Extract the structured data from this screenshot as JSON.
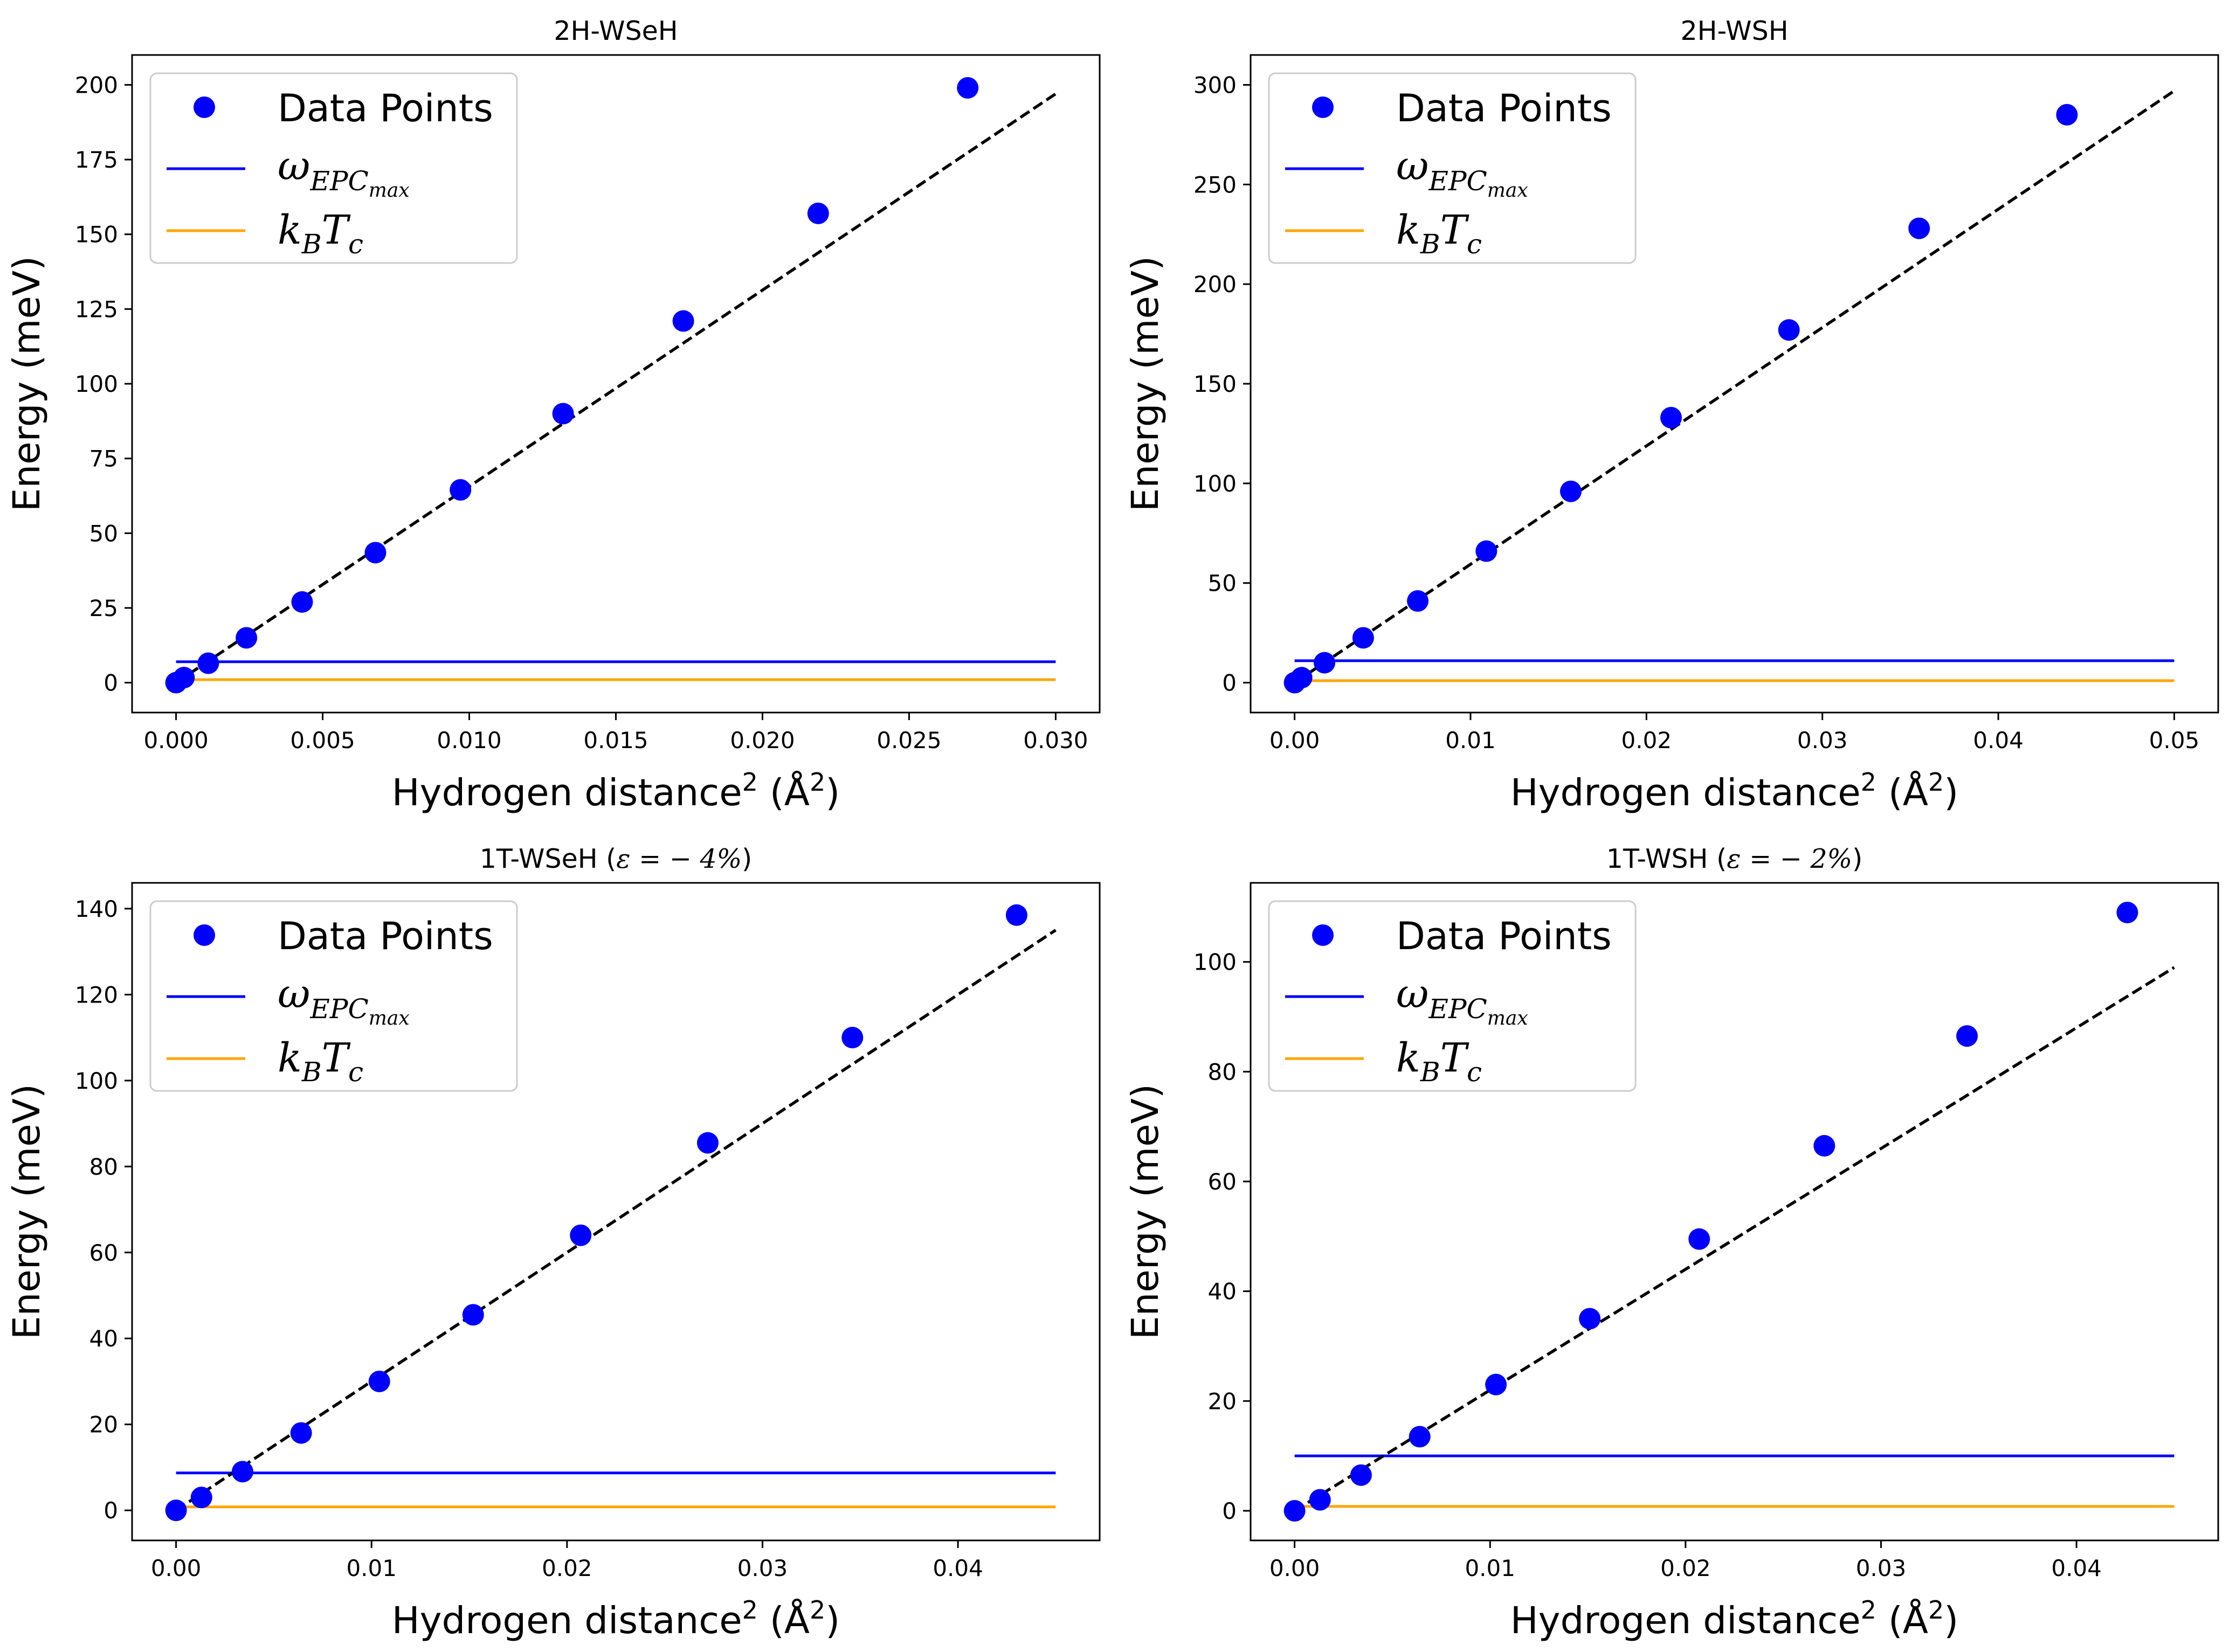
{
  "chart_data": [
    {
      "type": "scatter",
      "title": "2H-WSeH",
      "xlabel": "Hydrogen distance",
      "xlabel_sup": "2",
      "xlabel_unit": "(Å",
      "xlabel_unit_sup": "2",
      "xlabel_close": ")",
      "ylabel": "Energy (meV)",
      "xlim": [
        -0.0015,
        0.0315
      ],
      "ylim": [
        -10,
        210
      ],
      "xticks": [
        0.0,
        0.005,
        0.01,
        0.015,
        0.02,
        0.025,
        0.03
      ],
      "xtick_labels": [
        "0.000",
        "0.005",
        "0.010",
        "0.015",
        "0.020",
        "0.025",
        "0.030"
      ],
      "yticks": [
        0,
        25,
        50,
        75,
        100,
        125,
        150,
        175,
        200
      ],
      "ytick_labels": [
        "0",
        "25",
        "50",
        "75",
        "100",
        "125",
        "150",
        "175",
        "200"
      ],
      "series": [
        {
          "name": "Data Points",
          "kind": "scatter",
          "color": "#0000ff",
          "x": [
            0.0,
            0.00027,
            0.0011,
            0.0024,
            0.0043,
            0.0068,
            0.0097,
            0.0132,
            0.0173,
            0.0219,
            0.027
          ],
          "y": [
            0,
            1.7,
            6.5,
            15,
            27,
            43.5,
            64.5,
            90,
            121,
            157,
            199
          ]
        },
        {
          "name": "fit",
          "kind": "dashed-line",
          "color": "#000000",
          "x": [
            0.0,
            0.03
          ],
          "y": [
            0,
            197
          ]
        },
        {
          "name": "omega_EPC_max",
          "kind": "hline",
          "color": "#0000ff",
          "x": [
            0.0,
            0.03
          ],
          "y": [
            7,
            7
          ]
        },
        {
          "name": "kB_Tc",
          "kind": "hline",
          "color": "#ffa500",
          "x": [
            0.0,
            0.03
          ],
          "y": [
            1,
            1
          ]
        }
      ],
      "legend": {
        "placement": "upper-left",
        "entries": [
          {
            "label": "Data Points",
            "marker": "dot",
            "color": "#0000ff"
          },
          {
            "label_main": "ω",
            "label_sub": "EPC",
            "label_subsub": "max",
            "marker": "line",
            "color": "#0000ff"
          },
          {
            "label_main": "k",
            "label_sub": "B",
            "label_main2": "T",
            "label_sub2": "c",
            "marker": "line",
            "color": "#ffa500"
          }
        ]
      }
    },
    {
      "type": "scatter",
      "title": "2H-WSH",
      "xlabel": "Hydrogen distance",
      "xlabel_sup": "2",
      "xlabel_unit": "(Å",
      "xlabel_unit_sup": "2",
      "xlabel_close": ")",
      "ylabel": "Energy (meV)",
      "xlim": [
        -0.0025,
        0.0525
      ],
      "ylim": [
        -15,
        315
      ],
      "xticks": [
        0.0,
        0.01,
        0.02,
        0.03,
        0.04,
        0.05
      ],
      "xtick_labels": [
        "0.00",
        "0.01",
        "0.02",
        "0.03",
        "0.04",
        "0.05"
      ],
      "yticks": [
        0,
        50,
        100,
        150,
        200,
        250,
        300
      ],
      "ytick_labels": [
        "0",
        "50",
        "100",
        "150",
        "200",
        "250",
        "300"
      ],
      "series": [
        {
          "name": "Data Points",
          "kind": "scatter",
          "color": "#0000ff",
          "x": [
            0.0,
            0.0004,
            0.0017,
            0.0039,
            0.007,
            0.0109,
            0.0157,
            0.0214,
            0.0281,
            0.0355,
            0.0439
          ],
          "y": [
            0,
            2.5,
            10,
            22.5,
            41,
            66,
            96,
            133,
            177,
            228,
            285
          ]
        },
        {
          "name": "fit",
          "kind": "dashed-line",
          "color": "#000000",
          "x": [
            0.0,
            0.05
          ],
          "y": [
            0,
            297
          ]
        },
        {
          "name": "omega_EPC_max",
          "kind": "hline",
          "color": "#0000ff",
          "x": [
            0.0,
            0.05
          ],
          "y": [
            11,
            11
          ]
        },
        {
          "name": "kB_Tc",
          "kind": "hline",
          "color": "#ffa500",
          "x": [
            0.0,
            0.05
          ],
          "y": [
            1,
            1
          ]
        }
      ],
      "legend": {
        "placement": "upper-left",
        "entries": [
          {
            "label": "Data Points",
            "marker": "dot",
            "color": "#0000ff"
          },
          {
            "label_main": "ω",
            "label_sub": "EPC",
            "label_subsub": "max",
            "marker": "line",
            "color": "#0000ff"
          },
          {
            "label_main": "k",
            "label_sub": "B",
            "label_main2": "T",
            "label_sub2": "c",
            "marker": "line",
            "color": "#ffa500"
          }
        ]
      }
    },
    {
      "type": "scatter",
      "title_prefix": "1T-WSeH (",
      "title_math": "ε = − 4%",
      "title_suffix": ")",
      "xlabel": "Hydrogen distance",
      "xlabel_sup": "2",
      "xlabel_unit": "(Å",
      "xlabel_unit_sup": "2",
      "xlabel_close": ")",
      "ylabel": "Energy (meV)",
      "xlim": [
        -0.00225,
        0.04725
      ],
      "ylim": [
        -7,
        146
      ],
      "xticks": [
        0.0,
        0.01,
        0.02,
        0.03,
        0.04
      ],
      "xtick_labels": [
        "0.00",
        "0.01",
        "0.02",
        "0.03",
        "0.04"
      ],
      "yticks": [
        0,
        20,
        40,
        60,
        80,
        100,
        120,
        140
      ],
      "ytick_labels": [
        "0",
        "20",
        "40",
        "60",
        "80",
        "100",
        "120",
        "140"
      ],
      "series": [
        {
          "name": "Data Points",
          "kind": "scatter",
          "color": "#0000ff",
          "x": [
            0.0,
            0.0013,
            0.0034,
            0.0064,
            0.0104,
            0.0152,
            0.0207,
            0.0272,
            0.0346,
            0.043
          ],
          "y": [
            0,
            3,
            9,
            18,
            30,
            45.5,
            64,
            85.5,
            110,
            138.5
          ]
        },
        {
          "name": "fit",
          "kind": "dashed-line",
          "color": "#000000",
          "x": [
            0.0,
            0.045
          ],
          "y": [
            0,
            135
          ]
        },
        {
          "name": "omega_EPC_max",
          "kind": "hline",
          "color": "#0000ff",
          "x": [
            0.0,
            0.045
          ],
          "y": [
            8.7,
            8.7
          ]
        },
        {
          "name": "kB_Tc",
          "kind": "hline",
          "color": "#ffa500",
          "x": [
            0.0,
            0.045
          ],
          "y": [
            0.8,
            0.8
          ]
        }
      ],
      "legend": {
        "placement": "upper-left",
        "entries": [
          {
            "label": "Data Points",
            "marker": "dot",
            "color": "#0000ff"
          },
          {
            "label_main": "ω",
            "label_sub": "EPC",
            "label_subsub": "max",
            "marker": "line",
            "color": "#0000ff"
          },
          {
            "label_main": "k",
            "label_sub": "B",
            "label_main2": "T",
            "label_sub2": "c",
            "marker": "line",
            "color": "#ffa500"
          }
        ]
      }
    },
    {
      "type": "scatter",
      "title_prefix": "1T-WSH (",
      "title_math": "ε = − 2%",
      "title_suffix": ")",
      "xlabel": "Hydrogen distance",
      "xlabel_sup": "2",
      "xlabel_unit": "(Å",
      "xlabel_unit_sup": "2",
      "xlabel_close": ")",
      "ylabel": "Energy (meV)",
      "xlim": [
        -0.00225,
        0.04725
      ],
      "ylim": [
        -5.4,
        114.4
      ],
      "xticks": [
        0.0,
        0.01,
        0.02,
        0.03,
        0.04
      ],
      "xtick_labels": [
        "0.00",
        "0.01",
        "0.02",
        "0.03",
        "0.04"
      ],
      "yticks": [
        0,
        20,
        40,
        60,
        80,
        100
      ],
      "ytick_labels": [
        "0",
        "20",
        "40",
        "60",
        "80",
        "100"
      ],
      "series": [
        {
          "name": "Data Points",
          "kind": "scatter",
          "color": "#0000ff",
          "x": [
            0.0,
            0.0013,
            0.0034,
            0.0064,
            0.0103,
            0.0151,
            0.0207,
            0.0271,
            0.0344,
            0.0426
          ],
          "y": [
            0,
            2,
            6.5,
            13.5,
            23,
            35,
            49.5,
            66.5,
            86.5,
            109
          ]
        },
        {
          "name": "fit",
          "kind": "dashed-line",
          "color": "#000000",
          "x": [
            0.0,
            0.045
          ],
          "y": [
            0,
            99
          ]
        },
        {
          "name": "omega_EPC_max",
          "kind": "hline",
          "color": "#0000ff",
          "x": [
            0.0,
            0.045
          ],
          "y": [
            10,
            10
          ]
        },
        {
          "name": "kB_Tc",
          "kind": "hline",
          "color": "#ffa500",
          "x": [
            0.0,
            0.045
          ],
          "y": [
            0.8,
            0.8
          ]
        }
      ],
      "legend": {
        "placement": "upper-left",
        "entries": [
          {
            "label": "Data Points",
            "marker": "dot",
            "color": "#0000ff"
          },
          {
            "label_main": "ω",
            "label_sub": "EPC",
            "label_subsub": "max",
            "marker": "line",
            "color": "#0000ff"
          },
          {
            "label_main": "k",
            "label_sub": "B",
            "label_main2": "T",
            "label_sub2": "c",
            "marker": "line",
            "color": "#ffa500"
          }
        ]
      }
    }
  ]
}
